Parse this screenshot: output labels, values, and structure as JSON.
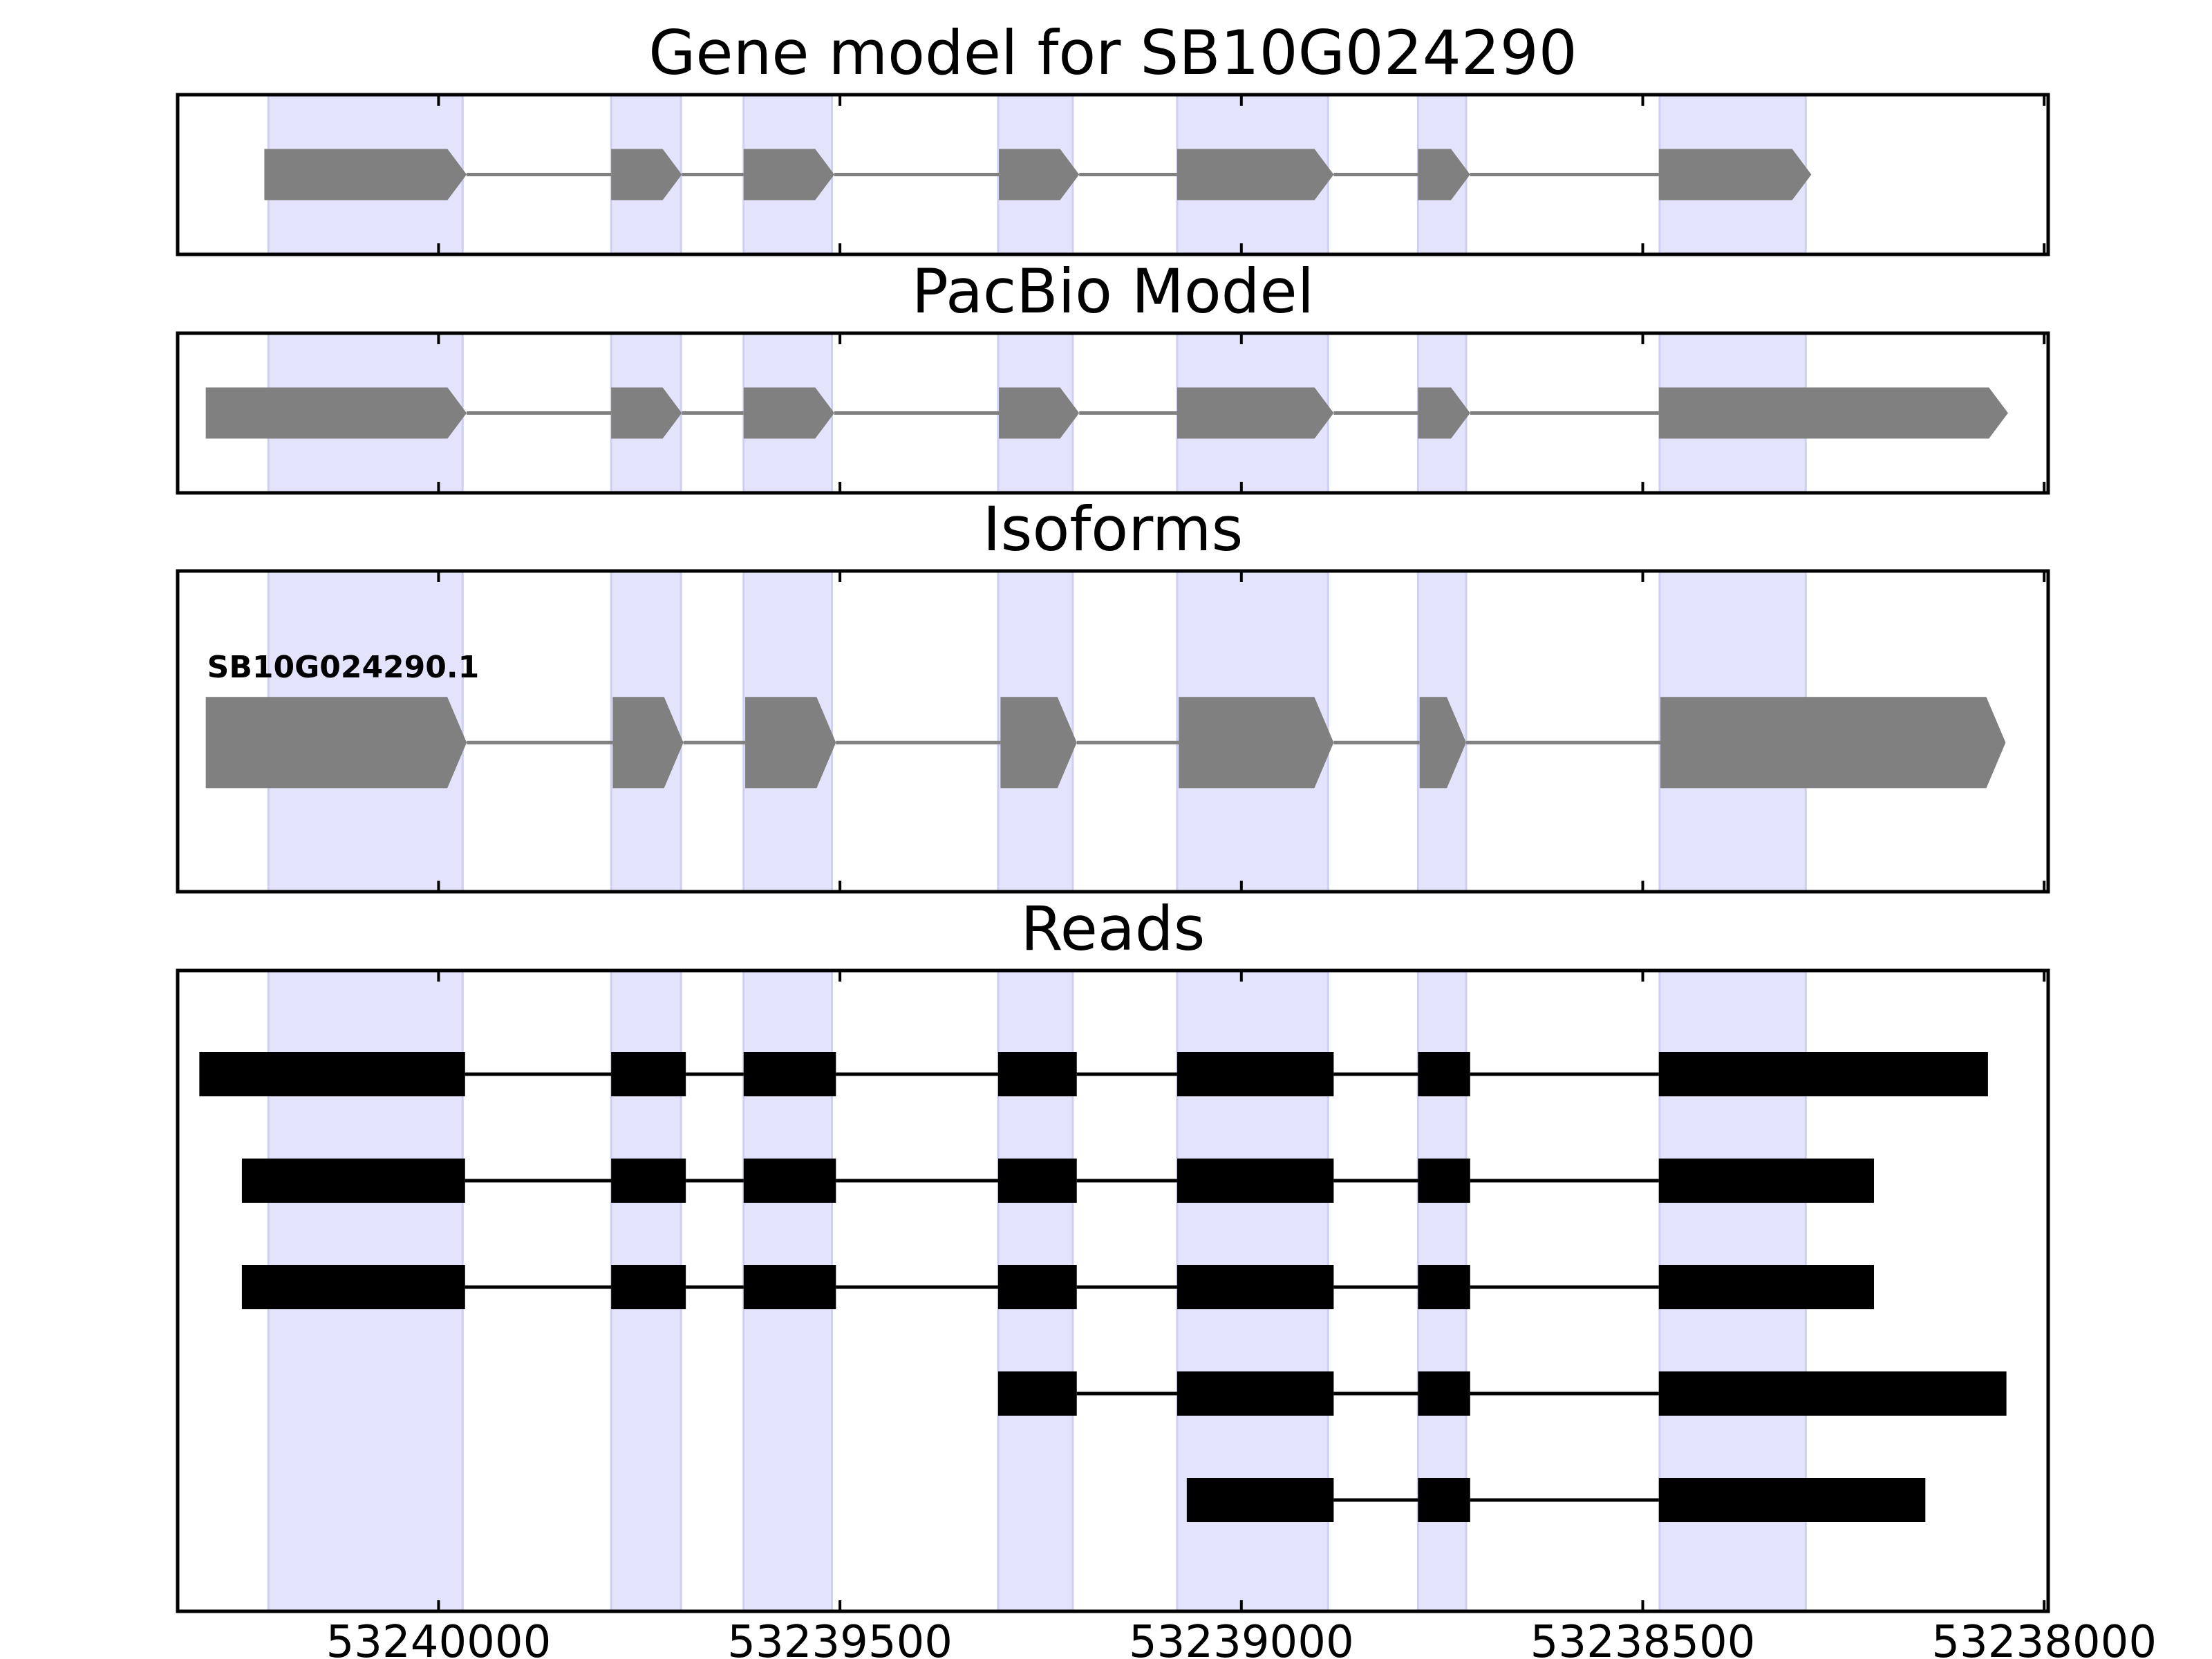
{
  "chart_data": {
    "type": "gene-structure",
    "x_axis": {
      "reversed": true,
      "xlim": [
        53240325,
        53237995
      ],
      "ticks": [
        53240000,
        53239500,
        53239000,
        53238500,
        53238000
      ],
      "tick_labels": [
        "53240000",
        "53239500",
        "53239000",
        "53238500",
        "53238000"
      ]
    },
    "colors": {
      "exon_band": "#e3e3fb",
      "exon_band_edge": "#cfcff4",
      "model_exon": "#808080",
      "model_intron": "#808080",
      "read_exon": "#000000",
      "read_intron": "#000000"
    },
    "exon_bands": [
      [
        53240212,
        53239970
      ],
      [
        53239785,
        53239698
      ],
      [
        53239620,
        53239510
      ],
      [
        53239303,
        53239210
      ],
      [
        53239080,
        53238892
      ],
      [
        53238780,
        53238720
      ],
      [
        53238479,
        53238297
      ]
    ],
    "panels": [
      {
        "title": "Gene model for SB10G024290",
        "kind": "model",
        "strand": "-",
        "features": [
          {
            "exons": [
              [
                53240217,
                53239965
              ],
              [
                53239785,
                53239697
              ],
              [
                53239620,
                53239507
              ],
              [
                53239302,
                53239202
              ],
              [
                53239080,
                53238885
              ],
              [
                53238780,
                53238715
              ],
              [
                53238480,
                53238290
              ]
            ]
          }
        ]
      },
      {
        "title": "PacBio Model",
        "kind": "model",
        "strand": "-",
        "features": [
          {
            "exons": [
              [
                53240290,
                53239965
              ],
              [
                53239785,
                53239697
              ],
              [
                53239620,
                53239507
              ],
              [
                53239302,
                53239202
              ],
              [
                53239080,
                53238885
              ],
              [
                53238780,
                53238715
              ],
              [
                53238480,
                53238045
              ]
            ]
          }
        ]
      },
      {
        "title": "Isoforms",
        "kind": "model",
        "strand": "-",
        "features": [
          {
            "label": "SB10G024290.1",
            "exons": [
              [
                53240290,
                53239965
              ],
              [
                53239783,
                53239695
              ],
              [
                53239618,
                53239505
              ],
              [
                53239300,
                53239205
              ],
              [
                53239078,
                53238885
              ],
              [
                53238778,
                53238720
              ],
              [
                53238478,
                53238048
              ]
            ]
          }
        ]
      },
      {
        "title": "Reads",
        "kind": "reads",
        "features": [
          {
            "exons": [
              [
                53240298,
                53239967
              ],
              [
                53239785,
                53239692
              ],
              [
                53239620,
                53239505
              ],
              [
                53239303,
                53239205
              ],
              [
                53239080,
                53238885
              ],
              [
                53238780,
                53238715
              ],
              [
                53238480,
                53238070
              ]
            ]
          },
          {
            "exons": [
              [
                53240245,
                53239967
              ],
              [
                53239785,
                53239692
              ],
              [
                53239620,
                53239505
              ],
              [
                53239303,
                53239205
              ],
              [
                53239080,
                53238885
              ],
              [
                53238780,
                53238715
              ],
              [
                53238480,
                53238212
              ]
            ]
          },
          {
            "exons": [
              [
                53240245,
                53239967
              ],
              [
                53239785,
                53239692
              ],
              [
                53239620,
                53239505
              ],
              [
                53239303,
                53239205
              ],
              [
                53239080,
                53238885
              ],
              [
                53238780,
                53238715
              ],
              [
                53238480,
                53238212
              ]
            ]
          },
          {
            "exons": [
              [
                53239303,
                53239205
              ],
              [
                53239080,
                53238885
              ],
              [
                53238780,
                53238715
              ],
              [
                53238480,
                53238047
              ]
            ]
          },
          {
            "exons": [
              [
                53239068,
                53238885
              ],
              [
                53238780,
                53238715
              ],
              [
                53238480,
                53238148
              ]
            ]
          }
        ]
      }
    ]
  }
}
